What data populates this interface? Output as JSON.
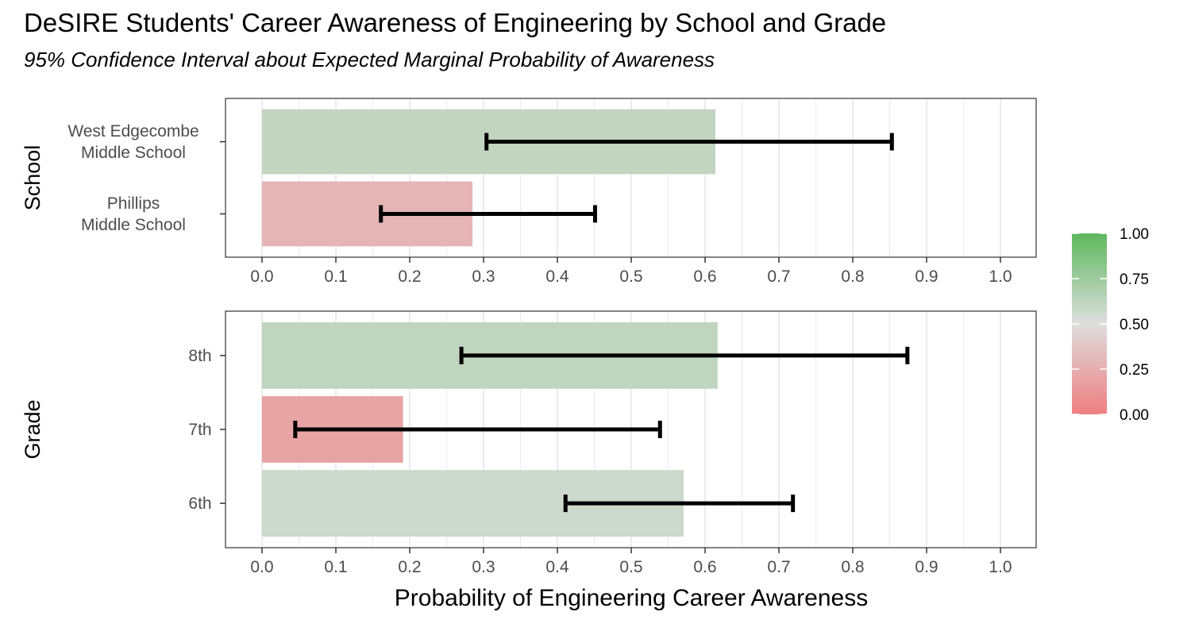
{
  "title": "DeSIRE Students' Career Awareness of Engineering by School and Grade",
  "subtitle": "95% Confidence Interval about Expected Marginal Probability of Awareness",
  "chart_data": [
    {
      "type": "bar",
      "orientation": "horizontal",
      "facet": "School",
      "categories": [
        "West Edgecombe\nMiddle School",
        "Phillips\nMiddle School"
      ],
      "values": [
        0.614,
        0.285
      ],
      "ci_lower": [
        0.304,
        0.161
      ],
      "ci_upper": [
        0.853,
        0.451
      ],
      "xlim": [
        0,
        1
      ],
      "x_ticks": [
        "0.0",
        "0.1",
        "0.2",
        "0.3",
        "0.4",
        "0.5",
        "0.6",
        "0.7",
        "0.8",
        "0.9",
        "1.0"
      ],
      "grid": true
    },
    {
      "type": "bar",
      "orientation": "horizontal",
      "facet": "Grade",
      "categories": [
        "8th",
        "7th",
        "6th"
      ],
      "values": [
        0.617,
        0.191,
        0.571
      ],
      "ci_lower": [
        0.27,
        0.045,
        0.411
      ],
      "ci_upper": [
        0.874,
        0.539,
        0.719
      ],
      "xlim": [
        0,
        1
      ],
      "x_ticks": [
        "0.0",
        "0.1",
        "0.2",
        "0.3",
        "0.4",
        "0.5",
        "0.6",
        "0.7",
        "0.8",
        "0.9",
        "1.0"
      ],
      "grid": true,
      "xlabel": "Probability of Engineering Career Awareness"
    }
  ],
  "legend": {
    "placement": "right",
    "ticks": [
      "1.00",
      "0.75",
      "0.50",
      "0.25",
      "0.00"
    ],
    "colors": {
      "low": "#EE7E80",
      "mid": "#DEDEDE",
      "high": "#5DB85D"
    }
  }
}
